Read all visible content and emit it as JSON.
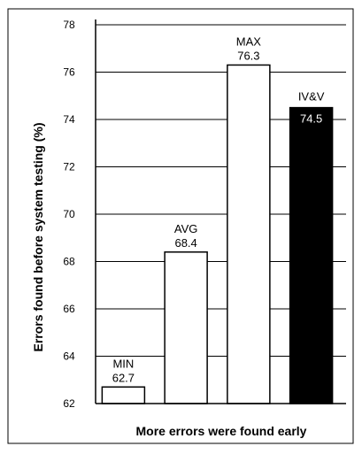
{
  "chart_data": {
    "type": "bar",
    "categories": [
      "MIN",
      "AVG",
      "MAX",
      "IV&V"
    ],
    "values": [
      62.7,
      68.4,
      76.3,
      74.5
    ],
    "value_labels": [
      "62.7",
      "68.4",
      "76.3",
      "74.5"
    ],
    "bar_colors": [
      "#ffffff",
      "#ffffff",
      "#ffffff",
      "#000000"
    ],
    "ylabel": "Errors found before system testing (%)",
    "xlabel": "More errors were found early",
    "ylim": [
      62,
      78
    ],
    "yticks": [
      62,
      64,
      66,
      68,
      70,
      72,
      74,
      76,
      78
    ],
    "grid": true
  }
}
